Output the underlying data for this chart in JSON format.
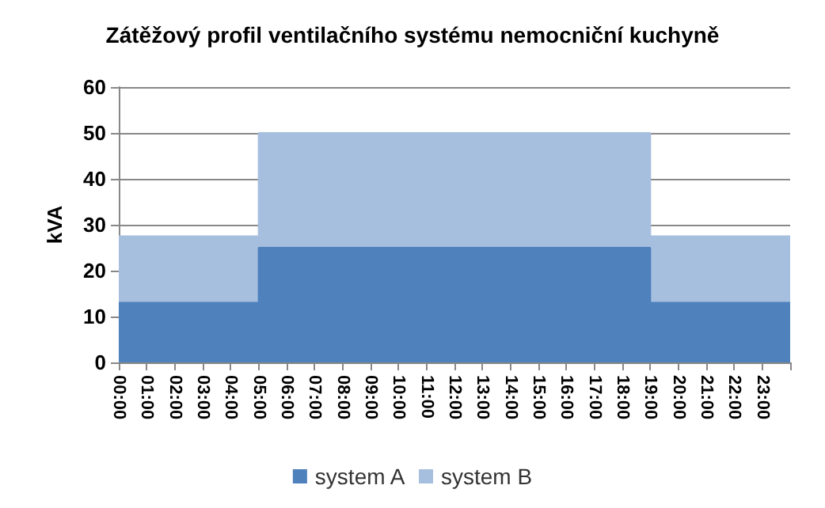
{
  "chart_data": {
    "type": "area",
    "title": "Zátěžový profil ventilačního systému nemocniční kuchyně",
    "ylabel": "kVA",
    "x": [
      0,
      5,
      5,
      19,
      19,
      24
    ],
    "series": [
      {
        "name": "system A",
        "color": "#4f81bd",
        "values": [
          13,
          13,
          25,
          25,
          13,
          13
        ]
      },
      {
        "name": "system B",
        "color": "#a7bfde",
        "values": [
          14.5,
          14.5,
          25,
          25,
          14.5,
          14.5
        ]
      }
    ],
    "stacked": true,
    "xlim": [
      0,
      24
    ],
    "xticks": [
      {
        "value": 0,
        "label": "00:00"
      },
      {
        "value": 1,
        "label": "01:00"
      },
      {
        "value": 2,
        "label": "02:00"
      },
      {
        "value": 3,
        "label": "03:00"
      },
      {
        "value": 4,
        "label": "04:00"
      },
      {
        "value": 5,
        "label": "05:00"
      },
      {
        "value": 6,
        "label": "06:00"
      },
      {
        "value": 7,
        "label": "07:00"
      },
      {
        "value": 8,
        "label": "08:00"
      },
      {
        "value": 9,
        "label": "09:00"
      },
      {
        "value": 10,
        "label": "10:00"
      },
      {
        "value": 11,
        "label": "11:00"
      },
      {
        "value": 12,
        "label": "12:00"
      },
      {
        "value": 13,
        "label": "13:00"
      },
      {
        "value": 14,
        "label": "14:00"
      },
      {
        "value": 15,
        "label": "15:00"
      },
      {
        "value": 16,
        "label": "16:00"
      },
      {
        "value": 17,
        "label": "17:00"
      },
      {
        "value": 18,
        "label": "18:00"
      },
      {
        "value": 19,
        "label": "19:00"
      },
      {
        "value": 20,
        "label": "20:00"
      },
      {
        "value": 21,
        "label": "21:00"
      },
      {
        "value": 22,
        "label": "22:00"
      },
      {
        "value": 23,
        "label": "23:00"
      },
      {
        "value": 24,
        "label": null
      }
    ],
    "ylim": [
      0,
      60
    ],
    "yticks": [
      0,
      10,
      20,
      30,
      40,
      50,
      60
    ],
    "grid": "y",
    "legend": "bottom"
  }
}
